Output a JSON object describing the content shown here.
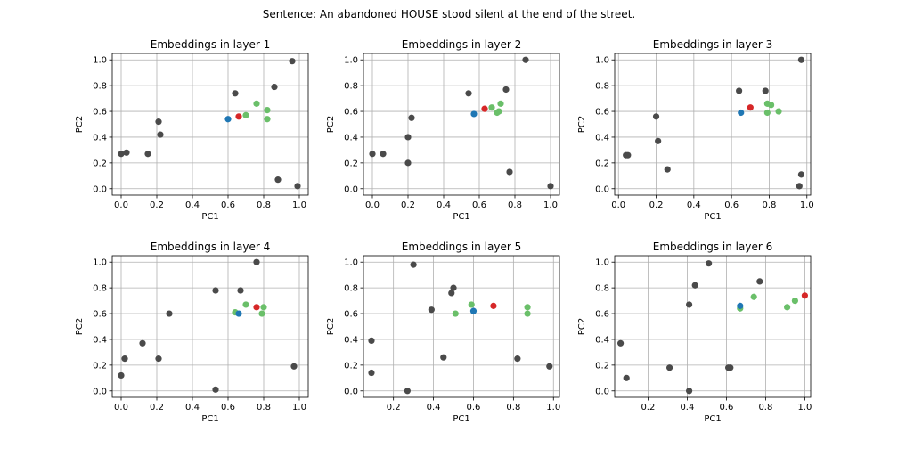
{
  "figure": {
    "title": "Sentence: An abandoned HOUSE stood silent at the end of the street."
  },
  "colors": {
    "context_word": "#4a4a4a",
    "target_word": "#d62728",
    "same_sense": "#1f77b4",
    "other_sense": "#6abf69"
  },
  "chart_data": [
    {
      "type": "scatter",
      "title": "Embeddings in layer 1",
      "xlabel": "PC1",
      "ylabel": "PC2",
      "xlim": [
        -0.05,
        1.05
      ],
      "ylim": [
        -0.05,
        1.05
      ],
      "xticks": [
        "0.0",
        "0.2",
        "0.4",
        "0.6",
        "0.8",
        "1.0"
      ],
      "yticks": [
        "0.0",
        "0.2",
        "0.4",
        "0.6",
        "0.8",
        "1.0"
      ],
      "grid": true,
      "series": [
        {
          "color": "context_word",
          "points": [
            [
              0.0,
              0.27
            ],
            [
              0.03,
              0.28
            ],
            [
              0.15,
              0.27
            ],
            [
              0.21,
              0.52
            ],
            [
              0.22,
              0.42
            ],
            [
              0.64,
              0.74
            ],
            [
              0.86,
              0.79
            ],
            [
              0.96,
              0.99
            ],
            [
              0.88,
              0.07
            ],
            [
              0.99,
              0.02
            ]
          ]
        },
        {
          "color": "other_sense",
          "points": [
            [
              0.7,
              0.57
            ],
            [
              0.76,
              0.66
            ],
            [
              0.82,
              0.61
            ],
            [
              0.82,
              0.54
            ]
          ]
        },
        {
          "color": "same_sense",
          "points": [
            [
              0.6,
              0.54
            ]
          ]
        },
        {
          "color": "target_word",
          "points": [
            [
              0.66,
              0.56
            ]
          ]
        }
      ]
    },
    {
      "type": "scatter",
      "title": "Embeddings in layer 2",
      "xlabel": "PC1",
      "ylabel": "PC2",
      "xlim": [
        -0.05,
        1.05
      ],
      "ylim": [
        -0.05,
        1.05
      ],
      "xticks": [
        "0.0",
        "0.2",
        "0.4",
        "0.6",
        "0.8",
        "1.0"
      ],
      "yticks": [
        "0.0",
        "0.2",
        "0.4",
        "0.6",
        "0.8",
        "1.0"
      ],
      "grid": true,
      "series": [
        {
          "color": "context_word",
          "points": [
            [
              0.0,
              0.27
            ],
            [
              0.06,
              0.27
            ],
            [
              0.2,
              0.4
            ],
            [
              0.2,
              0.2
            ],
            [
              0.22,
              0.55
            ],
            [
              0.54,
              0.74
            ],
            [
              0.75,
              0.77
            ],
            [
              0.86,
              1.0
            ],
            [
              0.77,
              0.13
            ],
            [
              1.0,
              0.02
            ]
          ]
        },
        {
          "color": "other_sense",
          "points": [
            [
              0.67,
              0.63
            ],
            [
              0.72,
              0.66
            ],
            [
              0.71,
              0.6
            ],
            [
              0.7,
              0.59
            ]
          ]
        },
        {
          "color": "same_sense",
          "points": [
            [
              0.57,
              0.58
            ]
          ]
        },
        {
          "color": "target_word",
          "points": [
            [
              0.63,
              0.62
            ]
          ]
        }
      ]
    },
    {
      "type": "scatter",
      "title": "Embeddings in layer 3",
      "xlabel": "PC1",
      "ylabel": "PC2",
      "xlim": [
        -0.02,
        1.02
      ],
      "ylim": [
        -0.05,
        1.05
      ],
      "xticks": [
        "0.0",
        "0.2",
        "0.4",
        "0.6",
        "0.8",
        "1.0"
      ],
      "yticks": [
        "0.0",
        "0.2",
        "0.4",
        "0.6",
        "0.8",
        "1.0"
      ],
      "grid": true,
      "series": [
        {
          "color": "context_word",
          "points": [
            [
              0.04,
              0.26
            ],
            [
              0.05,
              0.26
            ],
            [
              0.2,
              0.56
            ],
            [
              0.21,
              0.37
            ],
            [
              0.26,
              0.15
            ],
            [
              0.64,
              0.76
            ],
            [
              0.78,
              0.76
            ],
            [
              0.97,
              1.0
            ],
            [
              0.97,
              0.11
            ],
            [
              0.96,
              0.02
            ]
          ]
        },
        {
          "color": "other_sense",
          "points": [
            [
              0.79,
              0.66
            ],
            [
              0.81,
              0.65
            ],
            [
              0.79,
              0.59
            ],
            [
              0.85,
              0.6
            ]
          ]
        },
        {
          "color": "same_sense",
          "points": [
            [
              0.65,
              0.59
            ]
          ]
        },
        {
          "color": "target_word",
          "points": [
            [
              0.7,
              0.63
            ]
          ]
        }
      ]
    },
    {
      "type": "scatter",
      "title": "Embeddings in layer 4",
      "xlabel": "PC1",
      "ylabel": "PC2",
      "xlim": [
        -0.05,
        1.05
      ],
      "ylim": [
        -0.05,
        1.05
      ],
      "xticks": [
        "0.0",
        "0.2",
        "0.4",
        "0.6",
        "0.8",
        "1.0"
      ],
      "yticks": [
        "0.0",
        "0.2",
        "0.4",
        "0.6",
        "0.8",
        "1.0"
      ],
      "grid": true,
      "series": [
        {
          "color": "context_word",
          "points": [
            [
              0.0,
              0.12
            ],
            [
              0.02,
              0.25
            ],
            [
              0.12,
              0.37
            ],
            [
              0.21,
              0.25
            ],
            [
              0.27,
              0.6
            ],
            [
              0.53,
              0.78
            ],
            [
              0.67,
              0.78
            ],
            [
              0.76,
              1.0
            ],
            [
              0.97,
              0.19
            ],
            [
              0.53,
              0.01
            ]
          ]
        },
        {
          "color": "other_sense",
          "points": [
            [
              0.64,
              0.61
            ],
            [
              0.7,
              0.67
            ],
            [
              0.8,
              0.65
            ],
            [
              0.79,
              0.6
            ]
          ]
        },
        {
          "color": "same_sense",
          "points": [
            [
              0.66,
              0.6
            ]
          ]
        },
        {
          "color": "target_word",
          "points": [
            [
              0.76,
              0.65
            ]
          ]
        }
      ]
    },
    {
      "type": "scatter",
      "title": "Embeddings in layer 5",
      "xlabel": "PC1",
      "ylabel": "PC2",
      "xlim": [
        0.05,
        1.03
      ],
      "ylim": [
        -0.05,
        1.05
      ],
      "xticks": [
        "0.2",
        "0.4",
        "0.6",
        "0.8",
        "1.0"
      ],
      "yticks": [
        "0.0",
        "0.2",
        "0.4",
        "0.6",
        "0.8",
        "1.0"
      ],
      "grid": true,
      "series": [
        {
          "color": "context_word",
          "points": [
            [
              0.09,
              0.39
            ],
            [
              0.09,
              0.14
            ],
            [
              0.27,
              0.0
            ],
            [
              0.3,
              0.98
            ],
            [
              0.39,
              0.63
            ],
            [
              0.45,
              0.26
            ],
            [
              0.49,
              0.76
            ],
            [
              0.5,
              0.8
            ],
            [
              0.82,
              0.25
            ],
            [
              0.98,
              0.19
            ]
          ]
        },
        {
          "color": "other_sense",
          "points": [
            [
              0.51,
              0.6
            ],
            [
              0.59,
              0.67
            ],
            [
              0.87,
              0.65
            ],
            [
              0.87,
              0.6
            ]
          ]
        },
        {
          "color": "same_sense",
          "points": [
            [
              0.6,
              0.62
            ]
          ]
        },
        {
          "color": "target_word",
          "points": [
            [
              0.7,
              0.66
            ]
          ]
        }
      ]
    },
    {
      "type": "scatter",
      "title": "Embeddings in layer 6",
      "xlabel": "PC1",
      "ylabel": "PC2",
      "xlim": [
        0.03,
        1.03
      ],
      "ylim": [
        -0.05,
        1.05
      ],
      "xticks": [
        "0.2",
        "0.4",
        "0.6",
        "0.8",
        "1.0"
      ],
      "yticks": [
        "0.0",
        "0.2",
        "0.4",
        "0.6",
        "0.8",
        "1.0"
      ],
      "grid": true,
      "series": [
        {
          "color": "context_word",
          "points": [
            [
              0.06,
              0.37
            ],
            [
              0.09,
              0.1
            ],
            [
              0.31,
              0.18
            ],
            [
              0.41,
              0.67
            ],
            [
              0.41,
              0.0
            ],
            [
              0.44,
              0.82
            ],
            [
              0.51,
              0.99
            ],
            [
              0.61,
              0.18
            ],
            [
              0.62,
              0.18
            ],
            [
              0.77,
              0.85
            ]
          ]
        },
        {
          "color": "other_sense",
          "points": [
            [
              0.67,
              0.64
            ],
            [
              0.74,
              0.73
            ],
            [
              0.91,
              0.65
            ],
            [
              0.95,
              0.7
            ]
          ]
        },
        {
          "color": "same_sense",
          "points": [
            [
              0.67,
              0.66
            ]
          ]
        },
        {
          "color": "target_word",
          "points": [
            [
              1.0,
              0.74
            ]
          ]
        }
      ]
    }
  ]
}
